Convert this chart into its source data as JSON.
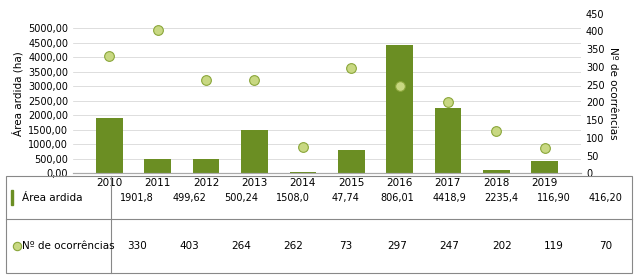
{
  "years": [
    "2010",
    "2011",
    "2012",
    "2013",
    "2014",
    "2015",
    "2016",
    "2017",
    "2018",
    "2019"
  ],
  "area_ardida": [
    1901.8,
    499.62,
    500.24,
    1508.0,
    47.74,
    806.01,
    4418.9,
    2235.4,
    116.9,
    416.2
  ],
  "ocorrencias": [
    330,
    403,
    264,
    262,
    73,
    297,
    247,
    202,
    119,
    70
  ],
  "bar_color": "#6B8E23",
  "dot_color": "#C8D882",
  "dot_edge_color": "#8AA63A",
  "ylabel_left": "Área ardida (ha)",
  "ylabel_right": "Nº de ocorrências",
  "ylim_left": [
    0,
    5500
  ],
  "ylim_right": [
    0,
    450
  ],
  "yticks_left": [
    0,
    500,
    1000,
    1500,
    2000,
    2500,
    3000,
    3500,
    4000,
    4500,
    5000
  ],
  "yticks_right": [
    0,
    50,
    100,
    150,
    200,
    250,
    300,
    350,
    400,
    450
  ],
  "legend_area": "Área ardida",
  "legend_occ": "Nº de ocorrências",
  "background_color": "#ffffff",
  "grid_color": "#d0d0d0",
  "table_area_values": [
    "1901,8",
    "499,62",
    "500,24",
    "1508,0",
    "47,74",
    "806,01",
    "4418,9",
    "2235,4",
    "116,90",
    "416,20"
  ],
  "table_occ_values": [
    "330",
    "403",
    "264",
    "262",
    "73",
    "297",
    "247",
    "202",
    "119",
    "70"
  ]
}
